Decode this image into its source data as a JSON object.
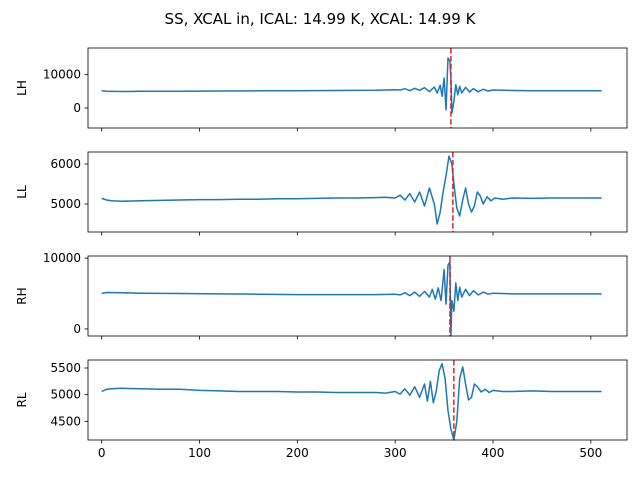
{
  "figure": {
    "title": "SS, XCAL in, ICAL: 14.99 K, XCAL: 14.99 K"
  },
  "colors": {
    "series": "#1f77b4",
    "marker_line": "#d62728"
  },
  "chart_data": [
    {
      "type": "line",
      "ylabel": "LH",
      "xlim": [
        -14,
        537
      ],
      "ylim": [
        -6000,
        18000
      ],
      "yticks": [
        0,
        10000
      ],
      "show_x_tick_labels": false,
      "vline_x": 357,
      "series": [
        {
          "x": [
            0,
            5,
            20,
            40,
            80,
            120,
            160,
            200,
            240,
            280,
            300,
            305,
            310,
            315,
            320,
            325,
            330,
            335,
            340,
            343,
            346,
            348,
            350,
            352,
            354,
            356,
            357,
            358,
            360,
            362,
            364,
            366,
            368,
            372,
            376,
            380,
            385,
            390,
            395,
            400,
            410,
            420,
            440,
            460,
            480,
            500,
            511
          ],
          "y": [
            5200,
            5000,
            4950,
            5000,
            5050,
            5100,
            5150,
            5200,
            5250,
            5300,
            5500,
            5400,
            5800,
            5200,
            5900,
            5300,
            6100,
            4900,
            6300,
            4500,
            6800,
            3500,
            9000,
            -500,
            15000,
            14000,
            9000,
            -1500,
            2000,
            7000,
            4000,
            6500,
            4500,
            6200,
            4800,
            5800,
            4900,
            5600,
            5100,
            5400,
            5300,
            5250,
            5200,
            5200,
            5200,
            5200,
            5200
          ]
        }
      ]
    },
    {
      "type": "line",
      "ylabel": "LL",
      "xlim": [
        -14,
        537
      ],
      "ylim": [
        4300,
        6300
      ],
      "yticks": [
        5000,
        6000
      ],
      "show_x_tick_labels": false,
      "vline_x": 359,
      "series": [
        {
          "x": [
            0,
            5,
            10,
            20,
            40,
            60,
            80,
            100,
            120,
            140,
            160,
            180,
            200,
            220,
            240,
            260,
            280,
            290,
            300,
            305,
            310,
            315,
            320,
            325,
            330,
            335,
            340,
            343,
            346,
            349,
            352,
            355,
            358,
            360,
            363,
            366,
            369,
            372,
            375,
            378,
            381,
            384,
            387,
            390,
            394,
            398,
            402,
            410,
            420,
            440,
            460,
            480,
            500,
            511
          ],
          "y": [
            5140,
            5100,
            5080,
            5070,
            5080,
            5090,
            5100,
            5110,
            5110,
            5120,
            5120,
            5130,
            5130,
            5140,
            5150,
            5150,
            5160,
            5170,
            5150,
            5220,
            5100,
            5260,
            5050,
            5300,
            4950,
            5400,
            5000,
            4500,
            4800,
            5300,
            5700,
            6200,
            6000,
            5500,
            4900,
            4700,
            5100,
            5400,
            5000,
            4800,
            4950,
            5300,
            5200,
            5000,
            5180,
            5080,
            5150,
            5120,
            5150,
            5140,
            5150,
            5150,
            5150,
            5150
          ]
        }
      ]
    },
    {
      "type": "line",
      "ylabel": "RH",
      "xlim": [
        -14,
        537
      ],
      "ylim": [
        -1000,
        10300
      ],
      "yticks": [
        0,
        10000
      ],
      "show_x_tick_labels": false,
      "vline_x": 356,
      "series": [
        {
          "x": [
            0,
            5,
            20,
            40,
            80,
            120,
            160,
            200,
            240,
            280,
            300,
            305,
            310,
            315,
            320,
            325,
            330,
            335,
            338,
            341,
            344,
            347,
            350,
            352,
            354,
            356,
            357,
            358,
            360,
            362,
            364,
            366,
            368,
            372,
            376,
            380,
            385,
            390,
            395,
            400,
            410,
            420,
            440,
            460,
            480,
            500,
            511
          ],
          "y": [
            5000,
            5150,
            5100,
            5050,
            5000,
            4950,
            4900,
            4850,
            4850,
            4850,
            4900,
            4800,
            5100,
            4700,
            5200,
            4600,
            5300,
            4500,
            5600,
            4200,
            5800,
            4000,
            8400,
            3500,
            9000,
            9500,
            -1000,
            4000,
            2500,
            6500,
            4000,
            5900,
            4500,
            5600,
            4700,
            5400,
            4800,
            5200,
            4900,
            5050,
            5000,
            4950,
            4950,
            4950,
            4950,
            4950,
            4950
          ]
        }
      ]
    },
    {
      "type": "line",
      "ylabel": "RL",
      "xlim": [
        -14,
        537
      ],
      "ylim": [
        4150,
        5650
      ],
      "yticks": [
        4500,
        5000,
        5500
      ],
      "show_x_tick_labels": true,
      "xticks": [
        0,
        100,
        200,
        300,
        400,
        500
      ],
      "vline_x": 360,
      "series": [
        {
          "x": [
            0,
            5,
            10,
            20,
            40,
            60,
            80,
            100,
            120,
            140,
            160,
            180,
            200,
            220,
            240,
            260,
            280,
            290,
            300,
            305,
            310,
            315,
            320,
            325,
            330,
            333,
            336,
            339,
            342,
            345,
            348,
            351,
            354,
            357,
            360,
            363,
            366,
            369,
            372,
            375,
            378,
            381,
            384,
            388,
            392,
            396,
            400,
            410,
            420,
            440,
            460,
            480,
            500,
            511
          ],
          "y": [
            5060,
            5100,
            5110,
            5120,
            5110,
            5100,
            5100,
            5080,
            5070,
            5060,
            5060,
            5060,
            5050,
            5050,
            5040,
            5040,
            5040,
            5030,
            5060,
            5010,
            5110,
            4990,
            5150,
            4950,
            5200,
            4880,
            5250,
            4850,
            5060,
            5450,
            5580,
            5300,
            4700,
            4350,
            4150,
            4500,
            5300,
            5520,
            5200,
            4900,
            4950,
            5200,
            5150,
            5050,
            5100,
            5040,
            5080,
            5060,
            5060,
            5070,
            5060,
            5060,
            5060,
            5060
          ]
        }
      ]
    }
  ]
}
